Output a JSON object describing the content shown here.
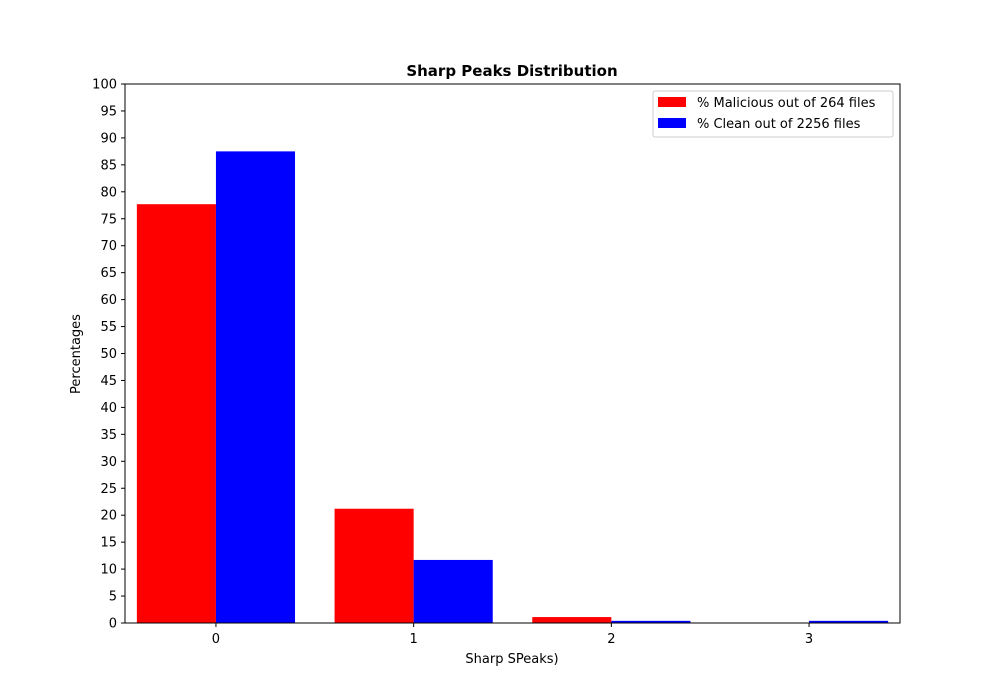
{
  "chart_data": {
    "type": "bar",
    "title": "Sharp Peaks Distribution",
    "xlabel": "Sharp SPeaks)",
    "ylabel": "Percentages",
    "categories": [
      "0",
      "1",
      "2",
      "3"
    ],
    "ylim": [
      0,
      100
    ],
    "yticks": [
      0,
      5,
      10,
      15,
      20,
      25,
      30,
      35,
      40,
      45,
      50,
      55,
      60,
      65,
      70,
      75,
      80,
      85,
      90,
      95,
      100
    ],
    "grid": false,
    "legend_position": "top-right",
    "series": [
      {
        "name": "% Malicious out of 264 files",
        "color": "#ff0000",
        "values": [
          77.7,
          21.2,
          1.1,
          0.0
        ]
      },
      {
        "name": "% Clean out of 2256 files",
        "color": "#0000ff",
        "values": [
          87.5,
          11.7,
          0.4,
          0.4
        ]
      }
    ]
  }
}
